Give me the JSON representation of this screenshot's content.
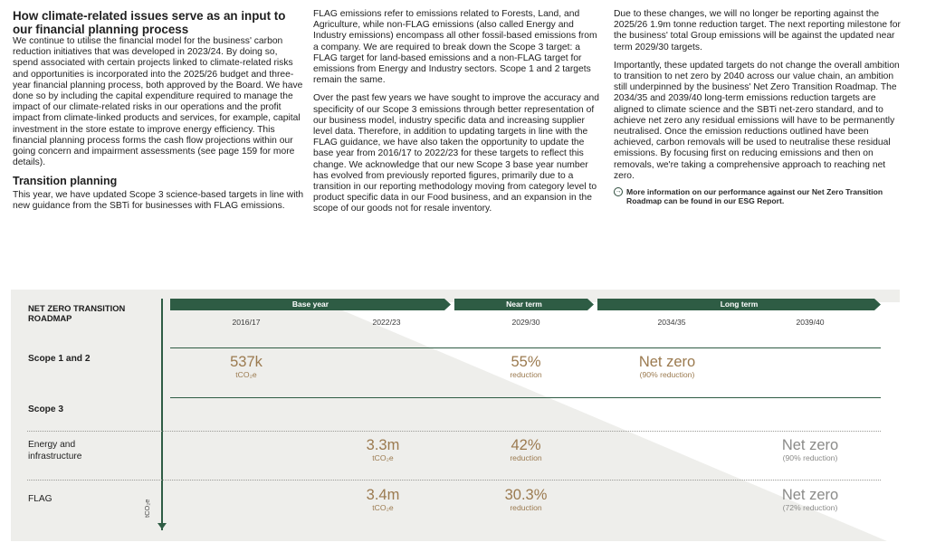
{
  "col1": {
    "heading": "How climate-related issues serve as an input to our financial planning process",
    "para1": "We continue to utilise the financial model for the business' carbon reduction initiatives that was developed in 2023/24. By doing so, spend associated with certain projects linked to climate-related risks and opportunities is incorporated into the 2025/26 budget and three-year financial planning process, both approved by the Board. We have done so by including the capital expenditure required to manage the impact of our climate-related risks in our operations and the profit impact from climate-linked products and services, for example, capital investment in the store estate to improve energy efficiency. This financial planning process forms the cash flow projections within our going concern and impairment assessments (see page 159 for more details).",
    "subheading": "Transition planning",
    "para2": "This year, we have updated Scope 3 science-based targets in line with new guidance from the SBTi for businesses with FLAG emissions."
  },
  "col2": {
    "para1": "FLAG emissions refer to emissions related to Forests, Land, and Agriculture, while non-FLAG emissions (also called Energy and Industry emissions) encompass all other fossil-based emissions from a company. We are required to break down the Scope 3 target: a FLAG target for land-based emissions and a non-FLAG target for emissions from Energy and Industry sectors. Scope 1 and 2 targets remain the same.",
    "para2": "Over the past few years we have sought to improve the accuracy and specificity of our Scope 3 emissions through better representation of our business model, industry specific data and increasing supplier level data. Therefore, in addition to updating targets in line with the FLAG guidance, we have also taken the opportunity to update the base year from 2016/17 to 2022/23 for these targets to reflect this change. We acknowledge that our new Scope 3 base year number has evolved from previously reported figures, primarily due to a transition in our reporting methodology moving from category level to product specific data in our Food business, and an expansion in the scope of our goods not for resale inventory."
  },
  "col3": {
    "para1": "Due to these changes, we will no longer be reporting against the 2025/26 1.9m tonne reduction target. The next reporting milestone for the business' total Group emissions will be against the updated near term 2029/30 targets.",
    "para2": "Importantly, these updated targets do not change the overall ambition to transition to net zero by 2040 across our value chain, an ambition still underpinned by the business' Net Zero Transition Roadmap. The 2034/35 and 2039/40 long-term emissions reduction targets are aligned to climate science and the SBTi net-zero standard, and to achieve net zero any residual emissions will have to be permanently neutralised. Once the emission reductions outlined have been achieved, carbon removals will be used to neutralise these residual emissions. By focusing first on reducing emissions and then on removals, we're taking a comprehensive approach to reaching net zero.",
    "more_icon": "arrow-circle-icon",
    "more_text": "More information on our performance against our Net Zero Transition Roadmap can be found in our ESG Report."
  },
  "roadmap": {
    "title": "NET ZERO TRANSITION ROADMAP",
    "y_axis_unit": "tCO₂e",
    "banners": [
      "Base year",
      "Near term",
      "Long term"
    ],
    "years": [
      "2016/17",
      "2022/23",
      "2029/30",
      "2034/35",
      "2039/40"
    ],
    "rows": {
      "scope12": "Scope 1 and 2",
      "scope3": "Scope 3",
      "energy": "Energy and infrastructure",
      "flag": "FLAG"
    },
    "values": {
      "s12_base": {
        "big": "537k",
        "sub": "tCO₂e"
      },
      "s12_near": {
        "big": "55%",
        "sub": "reduction"
      },
      "s12_long": {
        "big": "Net zero",
        "sub": "(90% reduction)"
      },
      "energy_base": {
        "big": "3.3m",
        "sub": "tCO₂e"
      },
      "energy_near": {
        "big": "42%",
        "sub": "reduction"
      },
      "energy_long": {
        "big": "Net zero",
        "sub": "(90% reduction)"
      },
      "flag_base": {
        "big": "3.4m",
        "sub": "tCO₂e"
      },
      "flag_near": {
        "big": "30.3%",
        "sub": "reduction"
      },
      "flag_long": {
        "big": "Net zero",
        "sub": "(72% reduction)"
      }
    },
    "colors": {
      "accent": "#2e5c44",
      "value_gold": "#9b7a4f",
      "value_grey": "#8b8b89",
      "panel": "#eeeeeb"
    }
  }
}
